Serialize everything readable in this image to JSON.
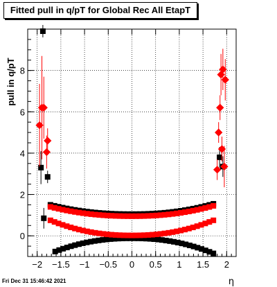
{
  "chart_data": {
    "type": "scatter",
    "title": "Fitted pull in q/pT for Global Rec All EtapT",
    "xlabel": "η",
    "ylabel": "pull in q/pT",
    "xlim": [
      -2.2,
      2.2
    ],
    "ylim": [
      -1.0,
      10.0
    ],
    "x_ticks": [
      "−2",
      "−1.5",
      "−1",
      "−0.5",
      "0",
      "0.5",
      "1",
      "1.5",
      "2"
    ],
    "y_ticks": [
      "0",
      "2",
      "4",
      "6",
      "8"
    ],
    "grid": true,
    "series": [
      {
        "marker": "square",
        "color": "#000000",
        "points": [
          {
            "x": -1.92,
            "y": 3.3,
            "err": 0.8
          },
          {
            "x": -1.88,
            "y": 9.9,
            "err": 0.3
          },
          {
            "x": -1.86,
            "y": 0.85,
            "err": 0.5
          },
          {
            "x": -1.78,
            "y": 2.85,
            "err": 0.3
          },
          {
            "x": 1.85,
            "y": 3.8,
            "err": 0.5
          },
          {
            "x": 1.92,
            "y": 3.35,
            "err": 0.5
          }
        ],
        "bands": [
          {
            "x_range": [
              -1.72,
              1.72
            ],
            "y_start": 1.5,
            "y_mid": 1.05,
            "y_end": 1.55
          },
          {
            "x_range": [
              -1.62,
              1.72
            ],
            "y_start": -0.85,
            "y_mid": -0.12,
            "y_end": -0.85
          }
        ]
      },
      {
        "marker": "square-diamond",
        "color": "#ff0000",
        "points": [
          {
            "x": -1.95,
            "y": 5.35,
            "err": 2.0
          },
          {
            "x": -1.9,
            "y": 6.2,
            "err": 2.5
          },
          {
            "x": -1.86,
            "y": 6.2,
            "err": 1.5
          },
          {
            "x": -1.8,
            "y": 4.05,
            "err": 0.8
          },
          {
            "x": -1.78,
            "y": 4.6,
            "err": 0.6
          },
          {
            "x": 1.8,
            "y": 3.2,
            "err": 0.5
          },
          {
            "x": 1.83,
            "y": 5.0,
            "err": 0.5
          },
          {
            "x": 1.86,
            "y": 6.2,
            "err": 0.6
          },
          {
            "x": 1.88,
            "y": 7.8,
            "err": 1.0
          },
          {
            "x": 1.9,
            "y": 4.2,
            "err": 0.6
          },
          {
            "x": 1.92,
            "y": 8.05,
            "err": 1.0
          },
          {
            "x": 1.95,
            "y": 3.35,
            "err": 1.0
          },
          {
            "x": 1.97,
            "y": 7.55,
            "err": 1.0
          }
        ],
        "bands": [
          {
            "x_range": [
              -1.72,
              1.72
            ],
            "y_start": 1.4,
            "y_mid": 0.95,
            "y_end": 1.45
          },
          {
            "x_range": [
              -1.72,
              1.72
            ],
            "y_start": 0.75,
            "y_mid": 0.02,
            "y_end": 0.75
          }
        ]
      }
    ]
  },
  "footer": {
    "timestamp": "Fri Dec 31 15:46:42 2021"
  }
}
